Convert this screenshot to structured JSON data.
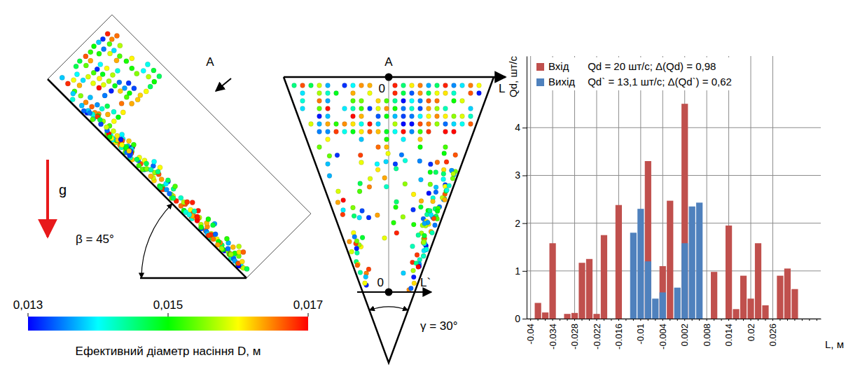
{
  "chart_data": {
    "type": "bar",
    "categories": [
      "-0.04",
      null,
      null,
      "-0.034",
      null,
      null,
      "-0.028",
      null,
      null,
      "-0.022",
      null,
      null,
      "-0.016",
      null,
      null,
      "-0.01",
      null,
      null,
      "-0.004",
      null,
      null,
      "0.002",
      null,
      null,
      "0.008",
      null,
      null,
      "0.014",
      null,
      null,
      "0.02",
      null,
      null,
      "0.026",
      null,
      null,
      null,
      null,
      null,
      null
    ],
    "series": [
      {
        "name": "Вхід",
        "color": "#c0504d",
        "values": [
          0,
          0.33,
          0.13,
          1.58,
          0,
          0.1,
          0.12,
          1.17,
          1.25,
          0.1,
          1.75,
          0,
          2.38,
          0,
          0,
          0,
          3.3,
          0,
          1.1,
          2.47,
          0,
          4.5,
          0,
          0,
          0,
          0.98,
          0,
          1.95,
          0.2,
          0.9,
          0.42,
          1.58,
          0.28,
          0,
          0.9,
          1.05,
          0.62,
          0,
          0,
          0
        ]
      },
      {
        "name": "Вихід",
        "color": "#4f81bd",
        "values": [
          0,
          0,
          0,
          0,
          0,
          0,
          0,
          0,
          0,
          0,
          0,
          0,
          0,
          0,
          1.8,
          2.3,
          1.2,
          0.42,
          0.55,
          0,
          0.65,
          1.58,
          2.35,
          2.43,
          0,
          0,
          0,
          0,
          0,
          0,
          0,
          0,
          0,
          0,
          0,
          0,
          0,
          0,
          0,
          0
        ]
      }
    ],
    "annotations": [
      "Qd = 20 шт/с; Δ(Qd) = 0,98",
      "Qd` = 13,1 шт/с; Δ(Qd`) = 0,62"
    ],
    "x_label": "L, м",
    "y_label": "Qd, шт/с",
    "ylim": [
      0,
      5.5
    ],
    "yticks": [
      0,
      1,
      2,
      3,
      4
    ],
    "grid": true,
    "legend": "top-left"
  },
  "figure": {
    "inclined_plane": {
      "point_label": "A",
      "gravity_label": "g",
      "angle_label": "β = 45°"
    },
    "plate": {
      "top_label": "A",
      "top_origin": "0",
      "top_axis": "L",
      "bottom_origin": "0",
      "bottom_axis": "L`",
      "angle_label": "γ = 30°"
    },
    "colorbar": {
      "range": [
        0.013,
        0.017
      ],
      "ticks": [
        {
          "value": 0.013,
          "label": "0,013"
        },
        {
          "value": 0.015,
          "label": "0,015"
        },
        {
          "value": 0.017,
          "label": "0,017"
        }
      ],
      "label": "Ефективний діаметр насіння D, м"
    }
  }
}
